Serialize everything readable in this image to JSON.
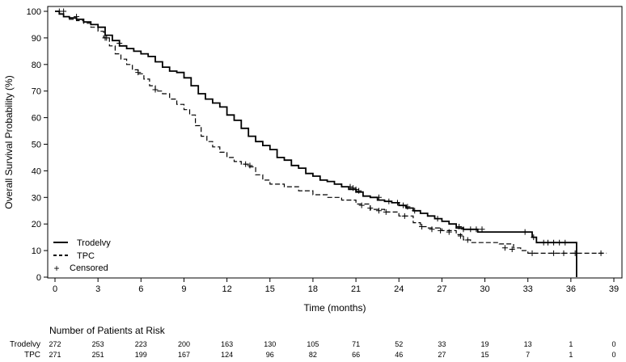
{
  "chart_data": {
    "type": "line",
    "subtype": "kaplan-meier",
    "title": "",
    "xlabel": "Time (months)",
    "ylabel": "Overall Survival Probability (%)",
    "xlim": [
      0,
      39
    ],
    "ylim": [
      0,
      100
    ],
    "x_ticks": [
      0,
      3,
      6,
      9,
      12,
      15,
      18,
      21,
      24,
      27,
      30,
      33,
      36,
      39
    ],
    "y_ticks": [
      0,
      10,
      20,
      30,
      40,
      50,
      60,
      70,
      80,
      90,
      100
    ],
    "grid": false,
    "legend": {
      "position": "bottom-left",
      "entries": [
        {
          "label": "Trodelvy",
          "style": "solid"
        },
        {
          "label": "TPC",
          "style": "dashed"
        },
        {
          "label": "Censored",
          "style": "plus-marker"
        }
      ]
    },
    "series": [
      {
        "name": "Trodelvy",
        "style": "solid",
        "color": "#000000",
        "points": [
          [
            0,
            100
          ],
          [
            0.3,
            99
          ],
          [
            0.6,
            98
          ],
          [
            1.0,
            97.5
          ],
          [
            1.5,
            97
          ],
          [
            2.0,
            96
          ],
          [
            2.5,
            95
          ],
          [
            3.0,
            94
          ],
          [
            3.5,
            91
          ],
          [
            4.0,
            89
          ],
          [
            4.5,
            87
          ],
          [
            5.0,
            86
          ],
          [
            5.5,
            85
          ],
          [
            6.0,
            84
          ],
          [
            6.5,
            83
          ],
          [
            7.0,
            81
          ],
          [
            7.5,
            79
          ],
          [
            8.0,
            77.5
          ],
          [
            8.5,
            77
          ],
          [
            9.0,
            75
          ],
          [
            9.5,
            72
          ],
          [
            10.0,
            69
          ],
          [
            10.5,
            67
          ],
          [
            11.0,
            65.5
          ],
          [
            11.5,
            64
          ],
          [
            12.0,
            61
          ],
          [
            12.5,
            59
          ],
          [
            13.0,
            56
          ],
          [
            13.5,
            53
          ],
          [
            14.0,
            51
          ],
          [
            14.5,
            49.5
          ],
          [
            15.0,
            48
          ],
          [
            15.5,
            45
          ],
          [
            16.0,
            44
          ],
          [
            16.5,
            42
          ],
          [
            17.0,
            41
          ],
          [
            17.5,
            39
          ],
          [
            18.0,
            38
          ],
          [
            18.5,
            36.5
          ],
          [
            19.0,
            36
          ],
          [
            19.5,
            35
          ],
          [
            20.0,
            34
          ],
          [
            20.5,
            33
          ],
          [
            21.0,
            32
          ],
          [
            21.5,
            30.5
          ],
          [
            22.0,
            30
          ],
          [
            22.5,
            29
          ],
          [
            23.0,
            28.5
          ],
          [
            23.5,
            28
          ],
          [
            24.0,
            27
          ],
          [
            24.5,
            26
          ],
          [
            25.0,
            25
          ],
          [
            25.5,
            24
          ],
          [
            26.0,
            23
          ],
          [
            26.5,
            22
          ],
          [
            27.0,
            21
          ],
          [
            27.5,
            20
          ],
          [
            28.0,
            18.5
          ],
          [
            28.5,
            18
          ],
          [
            29.0,
            18
          ],
          [
            29.5,
            17
          ],
          [
            30.0,
            17
          ],
          [
            31.0,
            17
          ],
          [
            32.0,
            17
          ],
          [
            33.0,
            17
          ],
          [
            33.3,
            15
          ],
          [
            33.6,
            13
          ],
          [
            34.5,
            13
          ],
          [
            35.5,
            13
          ],
          [
            36.4,
            13
          ],
          [
            36.4,
            0
          ]
        ],
        "censored": [
          [
            0.3,
            100
          ],
          [
            1.5,
            98
          ],
          [
            3.5,
            90
          ],
          [
            4.5,
            88
          ],
          [
            13.3,
            42.5
          ],
          [
            20.6,
            34
          ],
          [
            20.8,
            33.5
          ],
          [
            21.0,
            33
          ],
          [
            21.2,
            32.5
          ],
          [
            22.6,
            30
          ],
          [
            23.3,
            28.5
          ],
          [
            23.9,
            28
          ],
          [
            24.3,
            27
          ],
          [
            24.6,
            26.5
          ],
          [
            25.1,
            25
          ],
          [
            26.7,
            22
          ],
          [
            28.2,
            19
          ],
          [
            28.5,
            18
          ],
          [
            29.0,
            18
          ],
          [
            29.4,
            18
          ],
          [
            29.8,
            18
          ],
          [
            32.8,
            17
          ],
          [
            33.4,
            15
          ],
          [
            34.1,
            13
          ],
          [
            34.4,
            13
          ],
          [
            34.8,
            13
          ],
          [
            35.2,
            13
          ],
          [
            35.6,
            13
          ]
        ]
      },
      {
        "name": "TPC",
        "style": "dashed",
        "color": "#000000",
        "points": [
          [
            0,
            100
          ],
          [
            0.3,
            99
          ],
          [
            0.6,
            98
          ],
          [
            1.0,
            97
          ],
          [
            1.5,
            96.5
          ],
          [
            2.0,
            95.5
          ],
          [
            2.5,
            94
          ],
          [
            3.0,
            92.5
          ],
          [
            3.4,
            90
          ],
          [
            3.8,
            87
          ],
          [
            4.2,
            84
          ],
          [
            4.6,
            82
          ],
          [
            5.0,
            80
          ],
          [
            5.4,
            78
          ],
          [
            5.8,
            76.5
          ],
          [
            6.2,
            74.5
          ],
          [
            6.6,
            72
          ],
          [
            7.0,
            70
          ],
          [
            7.5,
            69
          ],
          [
            8.0,
            67
          ],
          [
            8.5,
            65
          ],
          [
            9.0,
            63
          ],
          [
            9.4,
            61
          ],
          [
            9.8,
            57
          ],
          [
            10.2,
            53
          ],
          [
            10.6,
            51
          ],
          [
            11.0,
            49
          ],
          [
            11.5,
            47
          ],
          [
            12.0,
            45
          ],
          [
            12.5,
            43.5
          ],
          [
            13.0,
            42.5
          ],
          [
            13.5,
            41.5
          ],
          [
            14.0,
            38.5
          ],
          [
            14.5,
            36.5
          ],
          [
            15.0,
            35
          ],
          [
            16.0,
            34
          ],
          [
            17.0,
            32.5
          ],
          [
            18.0,
            31
          ],
          [
            19.0,
            30
          ],
          [
            20.0,
            29
          ],
          [
            21.0,
            27.5
          ],
          [
            22.0,
            25.5
          ],
          [
            23.0,
            24.5
          ],
          [
            24.0,
            23
          ],
          [
            25.0,
            20.5
          ],
          [
            25.5,
            19
          ],
          [
            26.0,
            18.5
          ],
          [
            27.0,
            17.5
          ],
          [
            28.0,
            16
          ],
          [
            28.5,
            14
          ],
          [
            29.0,
            13
          ],
          [
            30.0,
            13
          ],
          [
            31.0,
            12.5
          ],
          [
            32.0,
            11
          ],
          [
            32.5,
            10
          ],
          [
            33.0,
            9
          ],
          [
            34.0,
            9
          ],
          [
            35.0,
            9
          ],
          [
            36.0,
            9
          ],
          [
            37.0,
            9
          ],
          [
            38.0,
            9
          ],
          [
            38.5,
            9
          ]
        ],
        "censored": [
          [
            0.6,
            100
          ],
          [
            3.6,
            90
          ],
          [
            5.8,
            77
          ],
          [
            7.0,
            70.5
          ],
          [
            13.6,
            42
          ],
          [
            21.4,
            27
          ],
          [
            22.0,
            26
          ],
          [
            22.6,
            25
          ],
          [
            23.1,
            24.5
          ],
          [
            24.4,
            23
          ],
          [
            25.6,
            19
          ],
          [
            26.3,
            18
          ],
          [
            26.9,
            17.5
          ],
          [
            27.5,
            17
          ],
          [
            28.3,
            15.5
          ],
          [
            28.8,
            14
          ],
          [
            31.4,
            11
          ],
          [
            31.9,
            10.5
          ],
          [
            33.3,
            9
          ],
          [
            34.8,
            9
          ],
          [
            35.5,
            9
          ],
          [
            36.3,
            9
          ],
          [
            38.1,
            9
          ]
        ]
      }
    ],
    "risk_table": {
      "title": "Number of Patients at Risk",
      "times": [
        0,
        3,
        6,
        9,
        12,
        15,
        18,
        21,
        24,
        27,
        30,
        33,
        36,
        39
      ],
      "rows": [
        {
          "label": "Trodelvy",
          "counts": [
            "272",
            "253",
            "223",
            "200",
            "163",
            "130",
            "105",
            "71",
            "52",
            "33",
            "19",
            "13",
            "1",
            "0"
          ]
        },
        {
          "label": "TPC",
          "counts": [
            "271",
            "251",
            "199",
            "167",
            "124",
            "96",
            "82",
            "66",
            "46",
            "27",
            "15",
            "7",
            "1",
            "0"
          ]
        }
      ]
    }
  }
}
